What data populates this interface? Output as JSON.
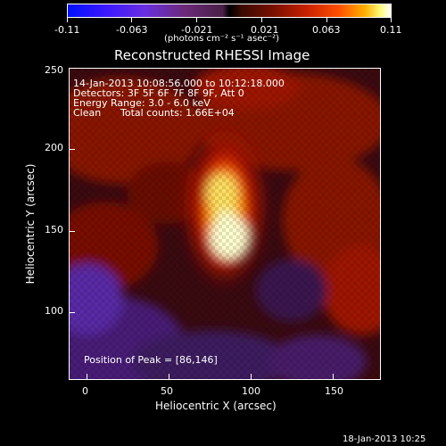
{
  "colorbar": {
    "tick_labels": [
      "-0.11",
      "-0.063",
      "-0.021",
      "0.021",
      "0.063",
      "0.11"
    ],
    "unit": "(photons cm⁻² s⁻¹ asec⁻²)"
  },
  "title": "Reconstructed RHESSI Image",
  "annotations": {
    "time_range": "14-Jan-2013 10:08:56.000 to 10:12:18.000",
    "detectors": "Detectors: 3F 5F 6F 7F 8F 9F, Att 0",
    "energy_range": "Energy Range: 3.0 - 6.0 keV",
    "clean_label": "Clean",
    "total_counts": "Total counts: 1.66E+04",
    "peak_position": "Position of Peak = [86,146]"
  },
  "axes": {
    "x_label": "Heliocentric X (arcsec)",
    "y_label": "Heliocentric Y (arcsec)",
    "x_ticks": [
      "0",
      "50",
      "100",
      "150"
    ],
    "y_ticks": [
      "250",
      "200",
      "150",
      "100"
    ]
  },
  "footer": {
    "timestamp": "18-Jan-2013 10:25"
  }
}
